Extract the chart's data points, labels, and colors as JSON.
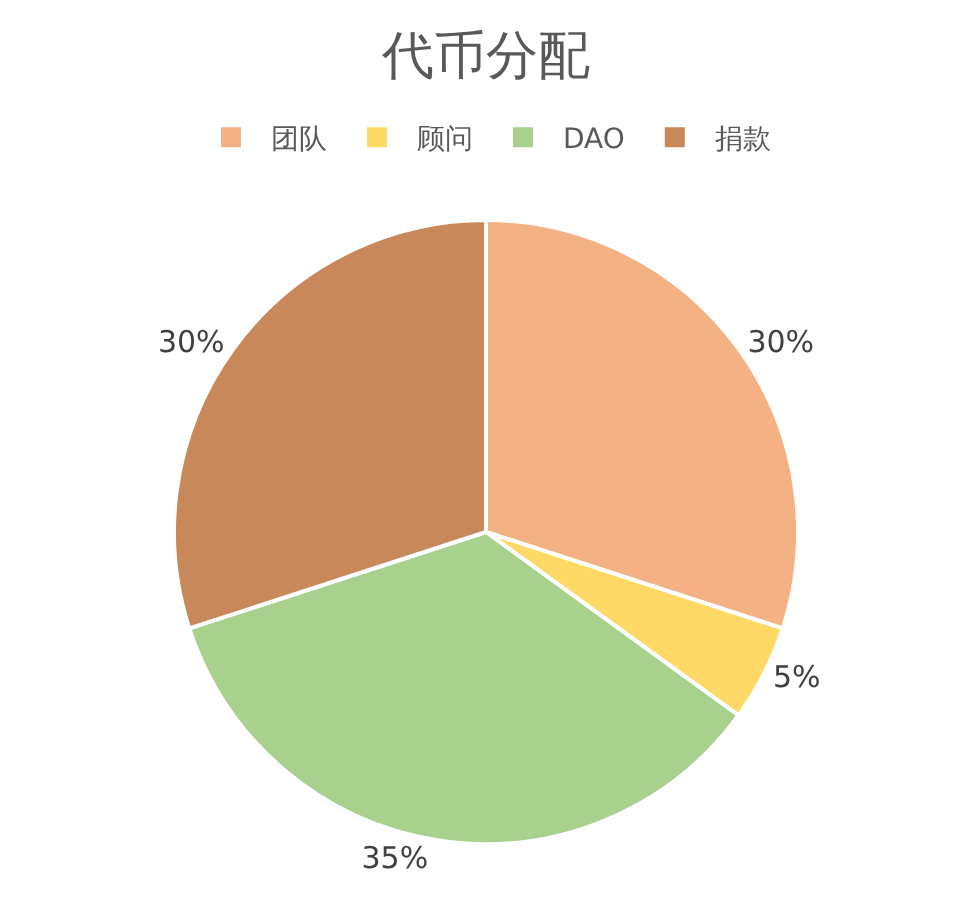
{
  "chart_data": {
    "type": "pie",
    "title": "代币分配",
    "categories": [
      "团队",
      "顾问",
      "DAO",
      "捐款"
    ],
    "values": [
      30,
      5,
      35,
      30
    ],
    "value_labels": [
      "30%",
      "5%",
      "35%",
      "30%"
    ],
    "colors": [
      "#f4b183",
      "#ffd966",
      "#a9d18e",
      "#c9885a"
    ],
    "legend": "top"
  }
}
